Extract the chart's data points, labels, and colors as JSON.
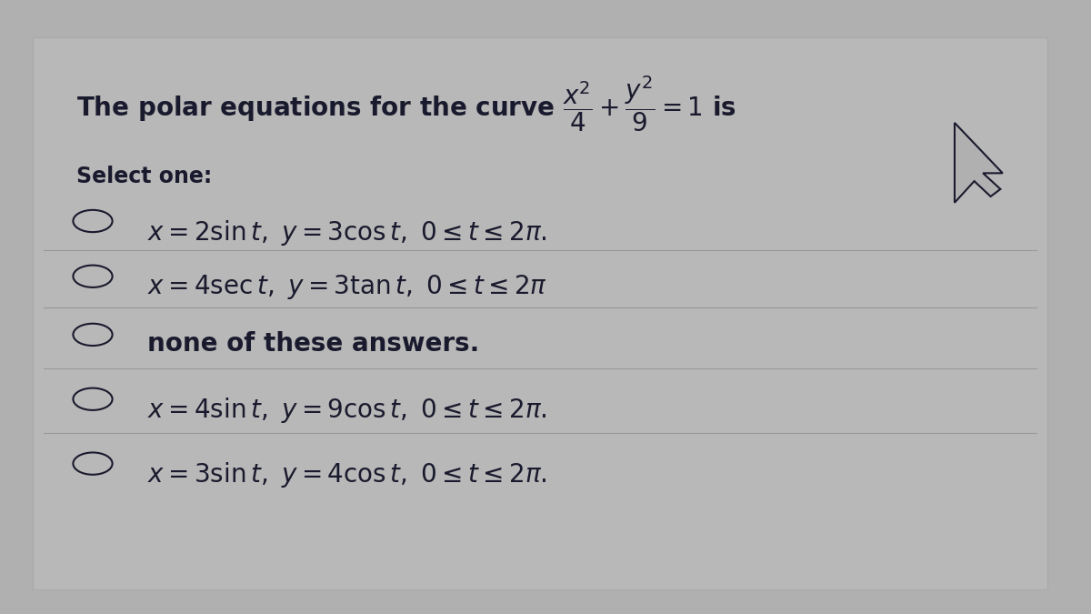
{
  "bg_color": "#b0b0b0",
  "card_color": "#b8b8b8",
  "text_color": "#1a1a2e",
  "sep_color": "#999999",
  "title": "The polar equations for the curve $\\dfrac{x^2}{4} + \\dfrac{y^2}{9} = 1$ is",
  "select_one": "Select one:",
  "options": [
    "$x = 2\\sin t,\\ y = 3\\cos t,\\ 0 \\leq t \\leq 2\\pi.$",
    "$x = 4\\sec t,\\ y = 3\\tan t,\\ 0 \\leq t \\leq 2\\pi$",
    "none of these answers.",
    "$x = 4\\sin t,\\ y = 9\\cos t,\\ 0 \\leq t \\leq 2\\pi.$",
    "$x = 3\\sin t,\\ y = 4\\cos t,\\ 0 \\leq t \\leq 2\\pi.$"
  ],
  "title_fontsize": 20,
  "option_fontsize": 20,
  "select_fontsize": 17,
  "figsize": [
    12,
    6.75
  ],
  "dpi": 100
}
